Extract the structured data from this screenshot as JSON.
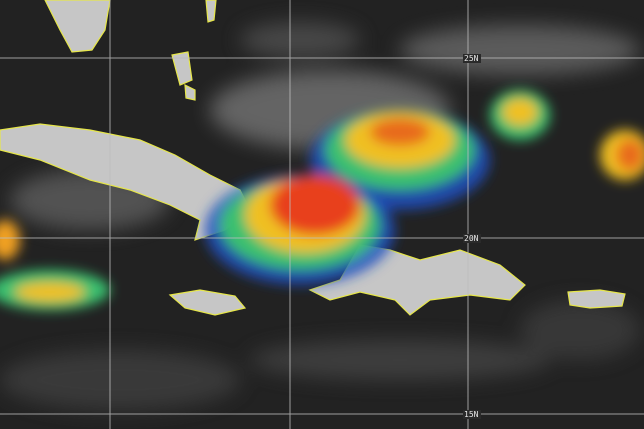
{
  "map": {
    "latitude_labels": [
      "25N",
      "20N",
      "15N"
    ],
    "colors": {
      "background": "#1e1e1e",
      "land": "#c8c8c8",
      "coastline": "#e8e84a",
      "gridline": "#bdbdbd",
      "storm_core": "#e8401c",
      "storm_mid": "#f0c020",
      "storm_outer": "#3ac070",
      "storm_edge": "#2050c0"
    }
  }
}
